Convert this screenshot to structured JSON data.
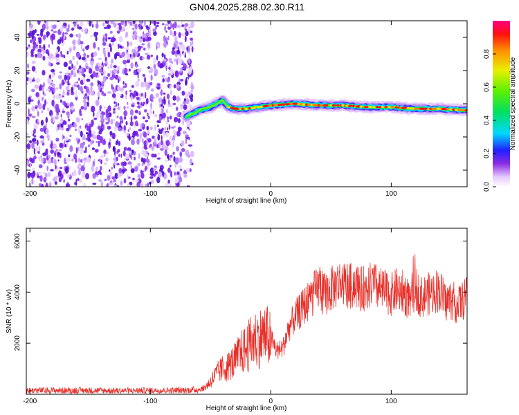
{
  "title": "GN04.2025.288.02.30.R11",
  "chart_data": [
    {
      "type": "heatmap",
      "xlabel": "Height of straight line (km)",
      "ylabel": "Frequency (Hz)",
      "xlim": [
        -203,
        163
      ],
      "ylim": [
        -50,
        50
      ],
      "x_ticks": [
        -200,
        -100,
        0,
        100
      ],
      "y_ticks": [
        -40,
        -20,
        0,
        20,
        40
      ],
      "colorbar": {
        "label": "Normalized spectral amplitude",
        "range": [
          0,
          1
        ],
        "ticks": [
          "0.0",
          "0.2",
          "0.4",
          "0.6",
          "0.8"
        ]
      },
      "noise_region_x": [
        -203,
        -65
      ],
      "signal_trace": {
        "x": [
          -70,
          -60,
          -50,
          -45,
          -40,
          -35,
          -30,
          -20,
          -10,
          0,
          20,
          40,
          60,
          80,
          100,
          120,
          140,
          163
        ],
        "y": [
          -8,
          -4,
          -2,
          0,
          2,
          -2,
          -3,
          -3,
          -2,
          -1,
          0,
          -1,
          -1,
          -2,
          -2,
          -3,
          -3,
          -4
        ]
      }
    },
    {
      "type": "line",
      "xlabel": "Height of straight line (km)",
      "ylabel": "SNR (10 * v/v)",
      "xlim": [
        -203,
        163
      ],
      "ylim": [
        0,
        6500
      ],
      "x_ticks": [
        -200,
        -100,
        0,
        100
      ],
      "y_ticks": [
        2000,
        4000,
        6000
      ],
      "color": "#e8302a",
      "series": [
        {
          "x": [
            -203,
            -180,
            -150,
            -120,
            -100,
            -80,
            -60,
            -55,
            -50,
            -45,
            -40,
            -35,
            -30,
            -25,
            -20,
            -15,
            -10,
            -5,
            0,
            5,
            10,
            15,
            20,
            25,
            30,
            35,
            40,
            45,
            50,
            55,
            60,
            65,
            70,
            75,
            80,
            85,
            90,
            95,
            100,
            105,
            110,
            115,
            120,
            125,
            130,
            135,
            140,
            145,
            150,
            155,
            163
          ],
          "values": [
            150,
            150,
            150,
            140,
            150,
            150,
            180,
            250,
            500,
            800,
            1000,
            1100,
            1300,
            1600,
            1800,
            2100,
            2200,
            2300,
            2200,
            1700,
            1800,
            2600,
            3000,
            3300,
            3600,
            3900,
            4200,
            3900,
            4100,
            4300,
            4400,
            4200,
            4300,
            4100,
            4200,
            4300,
            4100,
            4000,
            3900,
            4100,
            4000,
            3700,
            4200,
            3800,
            3900,
            4000,
            4100,
            3600,
            3700,
            3500,
            3800
          ]
        }
      ]
    }
  ]
}
